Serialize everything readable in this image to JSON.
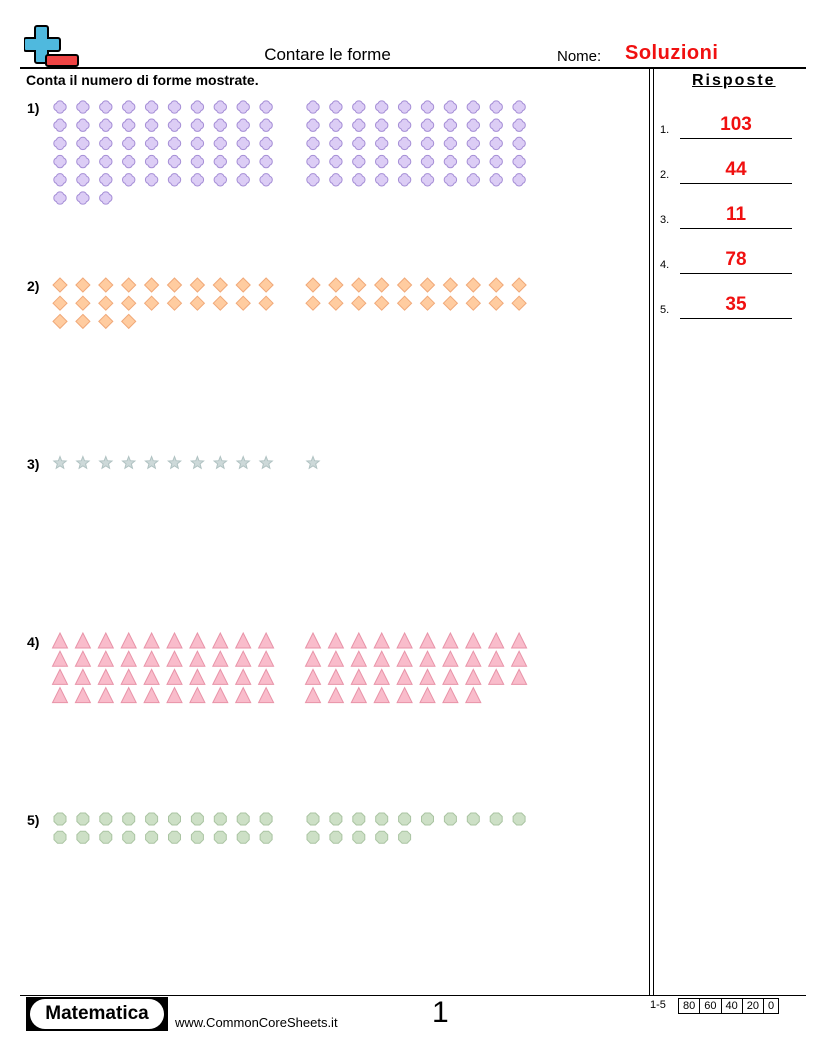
{
  "header": {
    "title": "Contare le forme",
    "name_label": "Nome:",
    "name_value": "Soluzioni",
    "logo_icon": "plus-minus-logo-icon"
  },
  "instructions": "Conta il numero di forme mostrate.",
  "answers_title": "Risposte",
  "problems": [
    {
      "label": "1)",
      "shape": "quatrefoil",
      "fill": "#dccdf5",
      "stroke": "#a58ed6",
      "left_count": 53,
      "right_count": 50
    },
    {
      "label": "2)",
      "shape": "diamond",
      "fill": "#ffcca0",
      "stroke": "#f0a878",
      "left_count": 24,
      "right_count": 20
    },
    {
      "label": "3)",
      "shape": "star",
      "fill": "#cdd9d9",
      "stroke": "#b0c2c2",
      "left_count": 10,
      "right_count": 1
    },
    {
      "label": "4)",
      "shape": "triangle",
      "fill": "#f9bccb",
      "stroke": "#e893a8",
      "left_count": 40,
      "right_count": 38
    },
    {
      "label": "5)",
      "shape": "circle",
      "fill": "#cde0c6",
      "stroke": "#aac4a2",
      "left_count": 20,
      "right_count": 15
    }
  ],
  "answers": [
    {
      "num": "1.",
      "value": "103"
    },
    {
      "num": "2.",
      "value": "44"
    },
    {
      "num": "3.",
      "value": "11"
    },
    {
      "num": "4.",
      "value": "78"
    },
    {
      "num": "5.",
      "value": "35"
    }
  ],
  "footer": {
    "brand": "Matematica",
    "site": "www.CommonCoreSheets.it",
    "page": "1",
    "range": "1-5",
    "scores": [
      "80",
      "60",
      "40",
      "20",
      "0"
    ]
  }
}
